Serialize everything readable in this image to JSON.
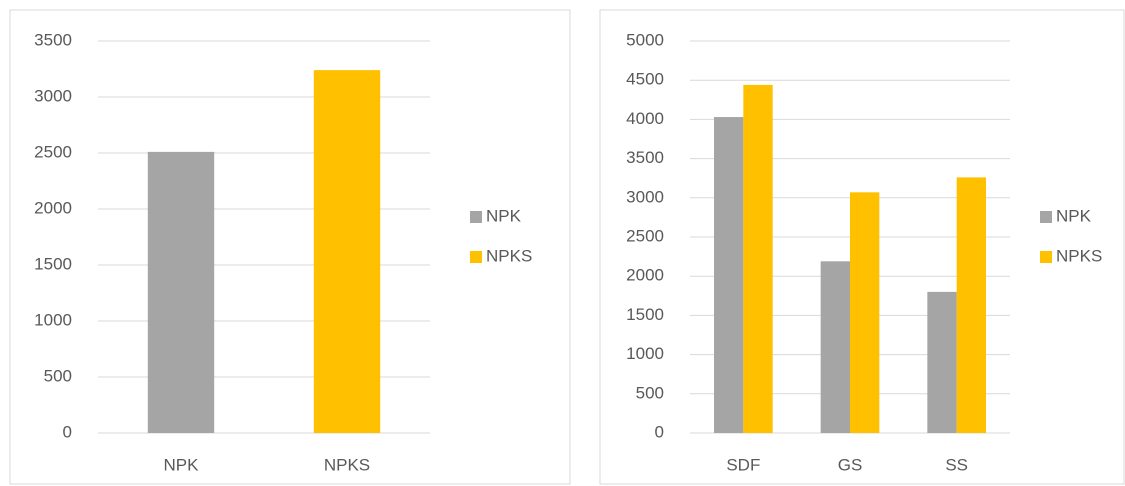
{
  "chart_data": [
    {
      "type": "bar",
      "categories": [
        "NPK",
        "NPKS"
      ],
      "values": [
        2510,
        3240
      ],
      "colors": [
        "#a5a5a5",
        "#ffc000"
      ],
      "ylim": [
        0,
        3500
      ],
      "yticks": [
        0,
        500,
        1000,
        1500,
        2000,
        2500,
        3000,
        3500
      ],
      "grid": true,
      "legend": "right"
    },
    {
      "type": "grouped-bar",
      "categories": [
        "SDF",
        "GS",
        "SS"
      ],
      "series": [
        {
          "name": "NPK",
          "color": "#a5a5a5",
          "values": [
            4030,
            2190,
            1800
          ]
        },
        {
          "name": "NPKS",
          "color": "#ffc000",
          "values": [
            4440,
            3070,
            3260
          ]
        }
      ],
      "ylim": [
        0,
        5000
      ],
      "yticks": [
        0,
        500,
        1000,
        1500,
        2000,
        2500,
        3000,
        3500,
        4000,
        4500,
        5000
      ],
      "grid": true,
      "legend": "right"
    }
  ]
}
